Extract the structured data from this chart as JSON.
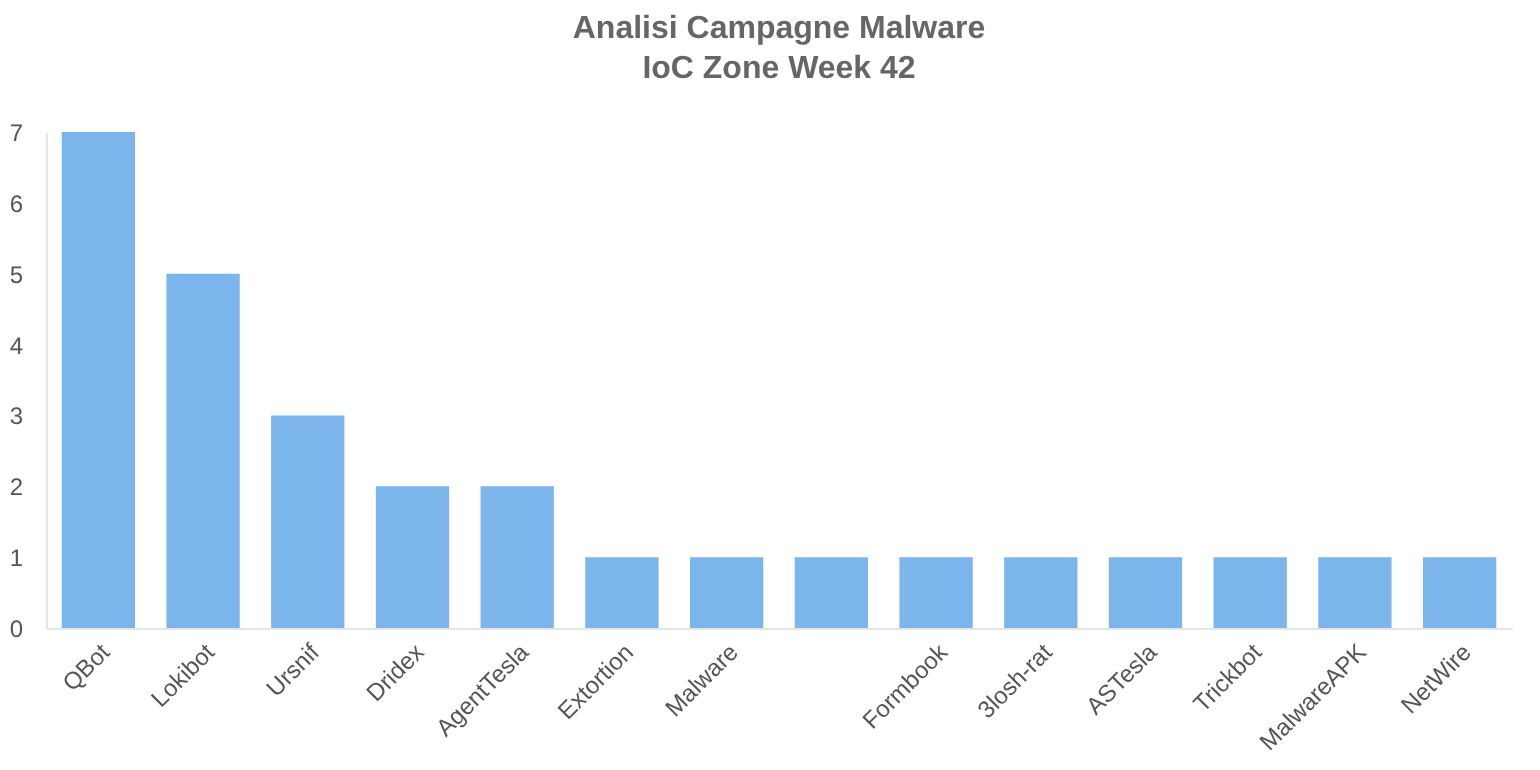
{
  "chart_data": {
    "type": "bar",
    "title": [
      "Analisi Campagne Malware",
      "IoC Zone Week 42"
    ],
    "categories": [
      "QBot",
      "Lokibot",
      "Ursnif",
      "Dridex",
      "AgentTesla",
      "Extortion",
      "Malware",
      null,
      "Formbook",
      "3losh-rat",
      "ASTesla",
      "Trickbot",
      "MalwareAPK",
      "NetWire"
    ],
    "values": [
      7,
      5,
      3,
      2,
      2,
      1,
      1,
      1,
      1,
      1,
      1,
      1,
      1,
      1
    ],
    "color": "#7cb5ec",
    "ylim": [
      0,
      7
    ],
    "yticks": [
      0,
      1,
      2,
      3,
      4,
      5,
      6,
      7
    ],
    "grid": false
  }
}
